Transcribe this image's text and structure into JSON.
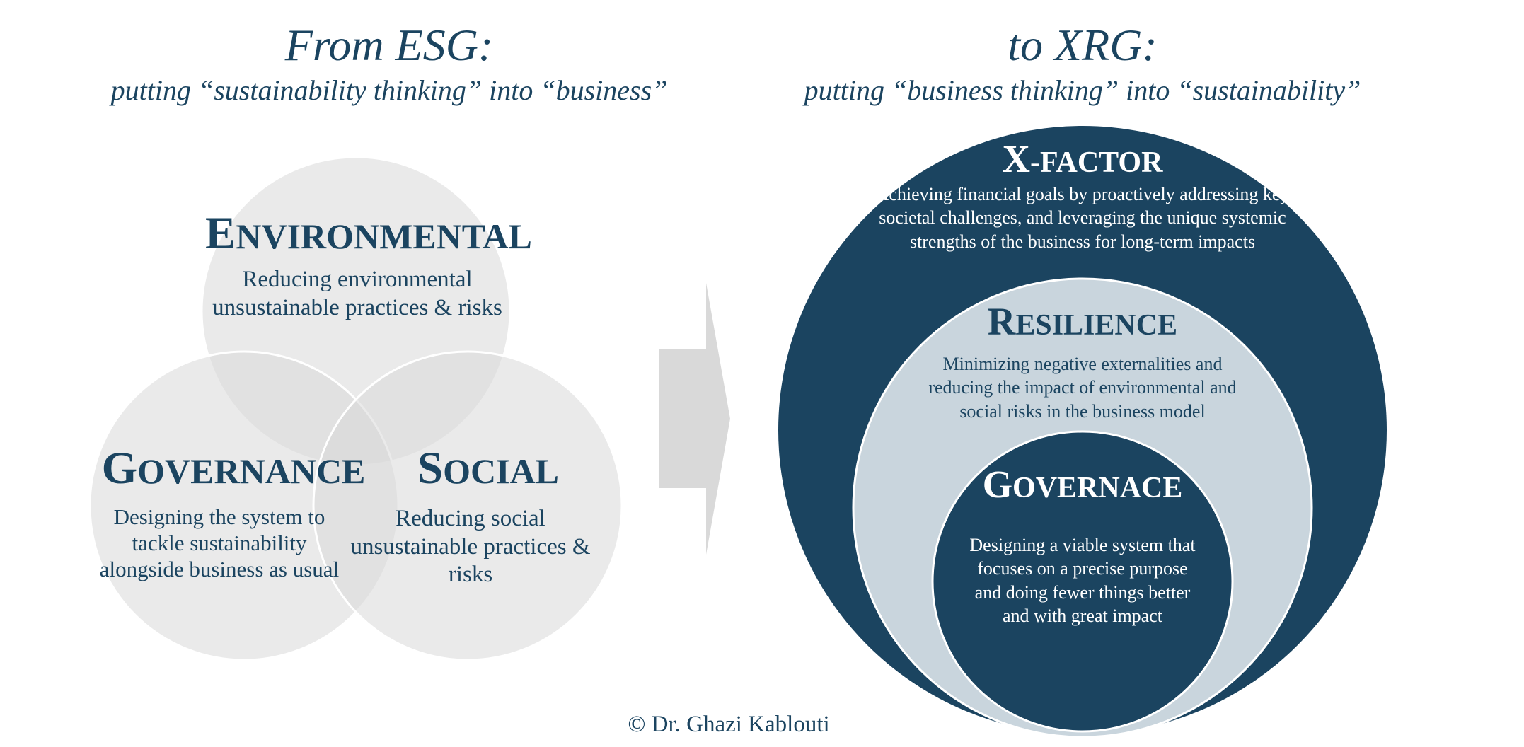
{
  "left": {
    "title": "From ESG:",
    "subtitle": "putting “sustainability thinking” into “business”",
    "environmental": {
      "initial": "E",
      "rest": "NVIRONMENTAL",
      "description": "Reducing environmental unsustainable practices & risks"
    },
    "governance": {
      "initial": "G",
      "rest": "OVERNANCE",
      "description": "Designing the system to tackle sustainability alongside business as usual"
    },
    "social": {
      "initial": "S",
      "rest": "OCIAL",
      "description": "Reducing social unsustainable practices & risks"
    }
  },
  "right": {
    "title": "to XRG:",
    "subtitle": "putting “business thinking” into “sustainability”",
    "xfactor": {
      "initial": "X",
      "rest": "-FACTOR",
      "description": "Achieving financial goals by proactively addressing key societal challenges, and leveraging the unique systemic strengths of the business for long-term impacts"
    },
    "resilience": {
      "initial": "R",
      "rest": "ESILIENCE",
      "description": "Minimizing negative externalities and reducing the impact of environmental and social risks in the business model"
    },
    "governace": {
      "initial": "G",
      "rest": "OVERNACE",
      "description": "Designing a viable system that focuses on a precise purpose and doing fewer things better and with great impact"
    }
  },
  "copyright": "© Dr. Ghazi Kablouti",
  "colors": {
    "navy": "#1b4460",
    "light_blue_gray": "#c9d5dd",
    "venn_gray": "#d9d9d9",
    "arrow_gray": "#d9d9d9"
  }
}
